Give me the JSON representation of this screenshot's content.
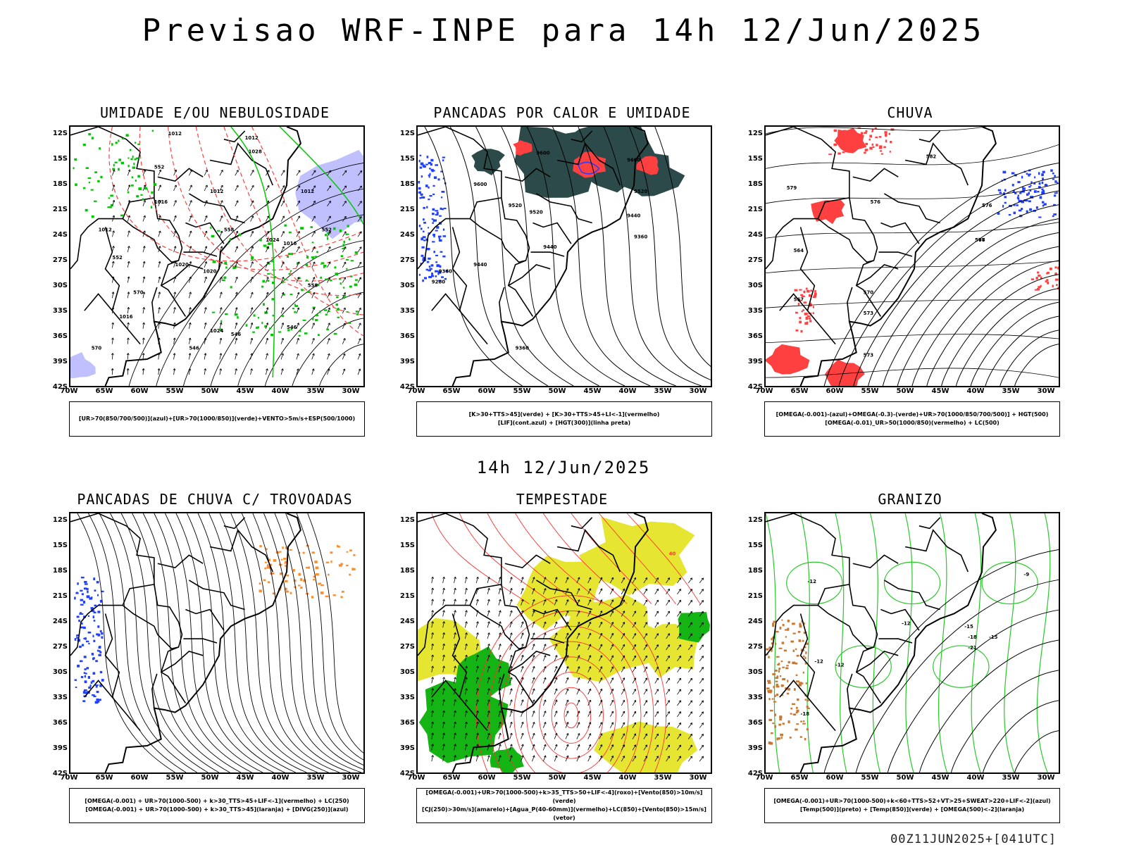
{
  "header": {
    "title": "Previsao WRF-INPE  para 14h 12/Jun/2025"
  },
  "mid_title": "14h 12/Jun/2025",
  "footer": "00Z11JUN2025+[041UTC]",
  "axes": {
    "lat_labels": [
      "12S",
      "15S",
      "18S",
      "21S",
      "24S",
      "27S",
      "30S",
      "33S",
      "36S",
      "39S",
      "42S"
    ],
    "lon_labels": [
      "70W",
      "65W",
      "60W",
      "55W",
      "50W",
      "45W",
      "40W",
      "35W",
      "30W"
    ]
  },
  "panels": [
    {
      "id": "umidade",
      "title": "UMIDADE E/OU NEBULOSIDADE",
      "legend": [
        "[UR>70(850/700/500)](azul)+[UR>70(1000/850)](verde)+VENTO>5m/s+ESP(500/1000)"
      ],
      "contour_labels": [
        "1012",
        "1012",
        "1012",
        "1016",
        "1016",
        "1020",
        "1020",
        "1024",
        "1024",
        "1012",
        "1016",
        "1012",
        "1028",
        "570",
        "570",
        "558",
        "552",
        "546",
        "546",
        "552",
        "552",
        "558",
        "546"
      ],
      "colors": {
        "blue_fill": "#b9b9ff",
        "green": "#00c800",
        "red": "#ff4040"
      }
    },
    {
      "id": "pancadas-calor",
      "title": "PANCADAS POR CALOR E UMIDADE",
      "legend": [
        "[K>30+TTS>45](verde) + [K>30+TTS>45+LI<-1](vermelho)",
        "[LIF](cont.azul) + [HGT(300)](linha preta)"
      ],
      "contour_labels": [
        "9600",
        "9600",
        "9600",
        "9520",
        "9520",
        "9520",
        "9440",
        "9440",
        "9440",
        "9360",
        "9360",
        "9360",
        "9280"
      ],
      "colors": {
        "dark_fill": "#2d4a4a",
        "red": "#ff4040",
        "blue": "#2040ff"
      }
    },
    {
      "id": "chuva",
      "title": "CHUVA",
      "legend": [
        "[OMEGA(-0.001)-(azul)+OMEGA(-0.3)-(verde)+UR>70(1000/850/700/500)] + HGT(500)",
        "[OMEGA(-0.01)_UR>50(1000/850)(vermelho) + LC(500)"
      ],
      "contour_labels": [
        "582",
        "576",
        "576",
        "567",
        "573",
        "573",
        "570",
        "579",
        "564",
        "567",
        "576"
      ],
      "colors": {
        "red": "#ff4040",
        "blue": "#2040ff"
      }
    },
    {
      "id": "trovoadas",
      "title": "PANCADAS DE CHUVA C/ TROVOADAS",
      "legend": [
        "[OMEGA(-0.001) + UR>70(1000-500) + k>30_TTS>45+LIF<-1](vermelho) + LC(250)",
        "[OMEGA(-0.001) + UR>70(1000-500) + k>30_TTS>45](laranja) + [DIVG(250)](azul)"
      ],
      "contour_labels": [],
      "colors": {
        "orange": "#ff8c28",
        "blue": "#2040ff"
      }
    },
    {
      "id": "tempestade",
      "title": "TEMPESTADE",
      "legend": [
        "[OMEGA(-0.001)+UR>70(1000-500)+k>35_TTS>50+LIF<-4](roxo)+[Vento(850)>10m/s](verde)",
        "[CJ(250)>30m/s](amarelo)+[Agua_P(40-60mm)](vermelho)+LC(850)+[Vento(850)>15m/s](vetor)"
      ],
      "contour_labels": [
        "40"
      ],
      "colors": {
        "yellow": "#e6e632",
        "green": "#14b414",
        "red": "#ff3030"
      }
    },
    {
      "id": "granizo",
      "title": "GRANIZO",
      "legend": [
        "[OMEGA(-0.001)+UR>70(1000-500)+k<60+TTS>52+VT>25+SWEAT>220+LIF<-2](azul)",
        "[Temp(500)](preto) + [Temp(850)](verde) + [OMEGA(500)<-2](laranja)"
      ],
      "contour_labels": [
        "-12",
        "-12",
        "-15",
        "-18",
        "-21",
        "-12",
        "-9",
        "-18",
        "-15",
        "-12"
      ],
      "colors": {
        "green": "#28c828",
        "orange": "#c87832"
      }
    }
  ]
}
